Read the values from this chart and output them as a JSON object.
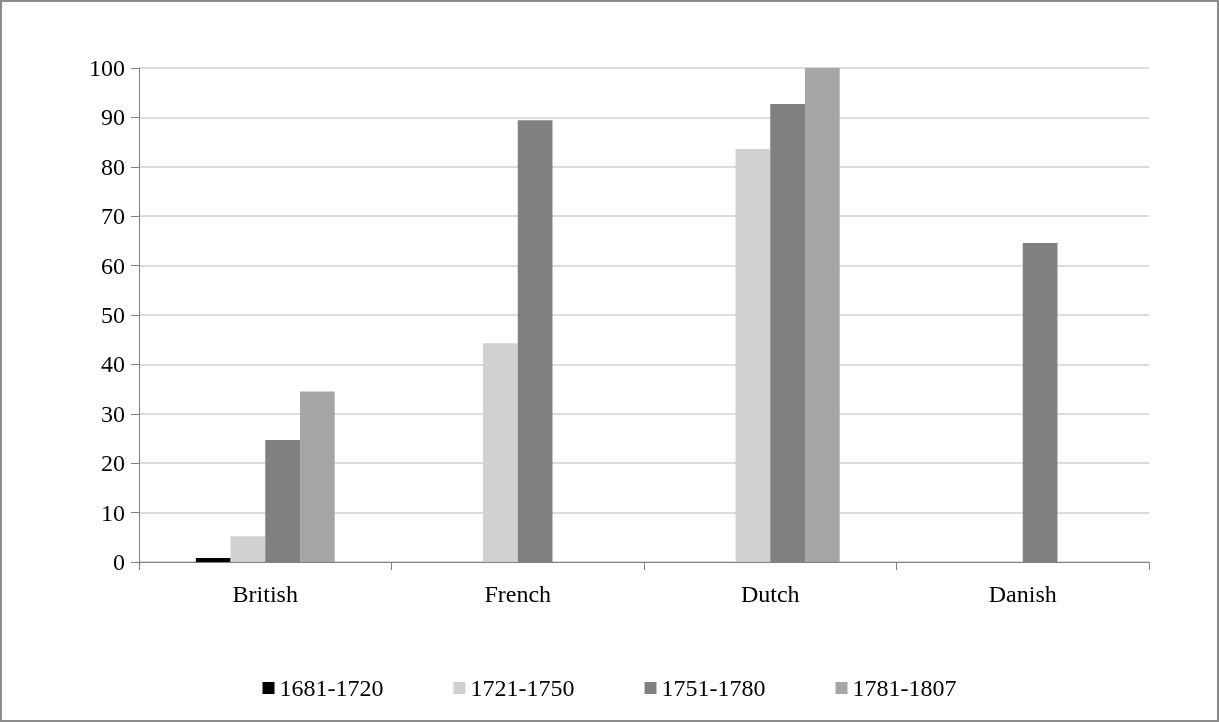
{
  "chart_data": {
    "type": "bar",
    "categories": [
      "British",
      "French",
      "Dutch",
      "Danish"
    ],
    "series": [
      {
        "name": "1681-1720",
        "color": "#000000",
        "values": [
          0.8,
          null,
          null,
          null
        ]
      },
      {
        "name": "1721-1750",
        "color": "#d0d0d0",
        "values": [
          5.2,
          44.3,
          83.6,
          null
        ]
      },
      {
        "name": "1751-1780",
        "color": "#808080",
        "values": [
          24.7,
          89.4,
          92.7,
          64.6
        ]
      },
      {
        "name": "1781-1807",
        "color": "#a6a6a6",
        "values": [
          34.5,
          null,
          100,
          null
        ]
      }
    ],
    "ylim": [
      0,
      100
    ],
    "yticks": [
      0,
      10,
      20,
      30,
      40,
      50,
      60,
      70,
      80,
      90,
      100
    ],
    "grid": "y",
    "legend": "bottom"
  }
}
